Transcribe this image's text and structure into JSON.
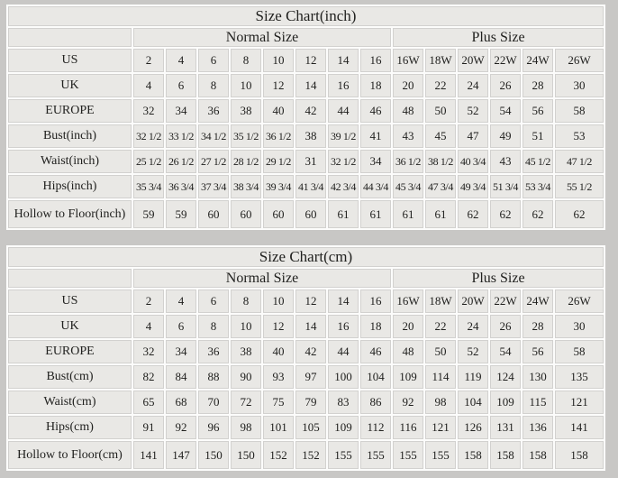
{
  "page": {
    "background": "#c8c7c5"
  },
  "colors": {
    "page_bg": "#c8c7c5",
    "table_background": "#fcfcfb",
    "cell_border": "#d2d1cf",
    "header_cell_bg": "#f5f4f2",
    "data_cell_bg": "#e9e8e5",
    "text": "#21211f"
  },
  "chart_data": [
    {
      "type": "table",
      "title": "Size Chart(inch)",
      "group_headers": [
        {
          "label": "Normal Size",
          "span": 8
        },
        {
          "label": "Plus Size",
          "span": 6
        }
      ],
      "rows": [
        {
          "label": "US",
          "values": [
            "2",
            "4",
            "6",
            "8",
            "10",
            "12",
            "14",
            "16",
            "16W",
            "18W",
            "20W",
            "22W",
            "24W",
            "26W"
          ]
        },
        {
          "label": "UK",
          "values": [
            "4",
            "6",
            "8",
            "10",
            "12",
            "14",
            "16",
            "18",
            "20",
            "22",
            "24",
            "26",
            "28",
            "30"
          ]
        },
        {
          "label": "EUROPE",
          "values": [
            "32",
            "34",
            "36",
            "38",
            "40",
            "42",
            "44",
            "46",
            "48",
            "50",
            "52",
            "54",
            "56",
            "58"
          ]
        },
        {
          "label": "Bust(inch)",
          "values": [
            "32 1/2",
            "33 1/2",
            "34 1/2",
            "35 1/2",
            "36 1/2",
            "38",
            "39 1/2",
            "41",
            "43",
            "45",
            "47",
            "49",
            "51",
            "53"
          ]
        },
        {
          "label": "Waist(inch)",
          "values": [
            "25 1/2",
            "26 1/2",
            "27 1/2",
            "28 1/2",
            "29 1/2",
            "31",
            "32 1/2",
            "34",
            "36 1/2",
            "38 1/2",
            "40 3/4",
            "43",
            "45 1/2",
            "47 1/2"
          ]
        },
        {
          "label": "Hips(inch)",
          "values": [
            "35 3/4",
            "36 3/4",
            "37 3/4",
            "38 3/4",
            "39 3/4",
            "41 3/4",
            "42 3/4",
            "44 3/4",
            "45 3/4",
            "47 3/4",
            "49 3/4",
            "51 3/4",
            "53 3/4",
            "55 1/2"
          ]
        },
        {
          "label": "Hollow to Floor(inch)",
          "values": [
            "59",
            "59",
            "60",
            "60",
            "60",
            "60",
            "61",
            "61",
            "61",
            "61",
            "62",
            "62",
            "62",
            "62"
          ]
        }
      ]
    },
    {
      "type": "table",
      "title": "Size Chart(cm)",
      "group_headers": [
        {
          "label": "Normal Size",
          "span": 8
        },
        {
          "label": "Plus Size",
          "span": 6
        }
      ],
      "rows": [
        {
          "label": "US",
          "values": [
            "2",
            "4",
            "6",
            "8",
            "10",
            "12",
            "14",
            "16",
            "16W",
            "18W",
            "20W",
            "22W",
            "24W",
            "26W"
          ]
        },
        {
          "label": "UK",
          "values": [
            "4",
            "6",
            "8",
            "10",
            "12",
            "14",
            "16",
            "18",
            "20",
            "22",
            "24",
            "26",
            "28",
            "30"
          ]
        },
        {
          "label": "EUROPE",
          "values": [
            "32",
            "34",
            "36",
            "38",
            "40",
            "42",
            "44",
            "46",
            "48",
            "50",
            "52",
            "54",
            "56",
            "58"
          ]
        },
        {
          "label": "Bust(cm)",
          "values": [
            "82",
            "84",
            "88",
            "90",
            "93",
            "97",
            "100",
            "104",
            "109",
            "114",
            "119",
            "124",
            "130",
            "135"
          ]
        },
        {
          "label": "Waist(cm)",
          "values": [
            "65",
            "68",
            "70",
            "72",
            "75",
            "79",
            "83",
            "86",
            "92",
            "98",
            "104",
            "109",
            "115",
            "121"
          ]
        },
        {
          "label": "Hips(cm)",
          "values": [
            "91",
            "92",
            "96",
            "98",
            "101",
            "105",
            "109",
            "112",
            "116",
            "121",
            "126",
            "131",
            "136",
            "141"
          ]
        },
        {
          "label": "Hollow to Floor(cm)",
          "values": [
            "141",
            "147",
            "150",
            "150",
            "152",
            "152",
            "155",
            "155",
            "155",
            "155",
            "158",
            "158",
            "158",
            "158"
          ]
        }
      ]
    }
  ]
}
